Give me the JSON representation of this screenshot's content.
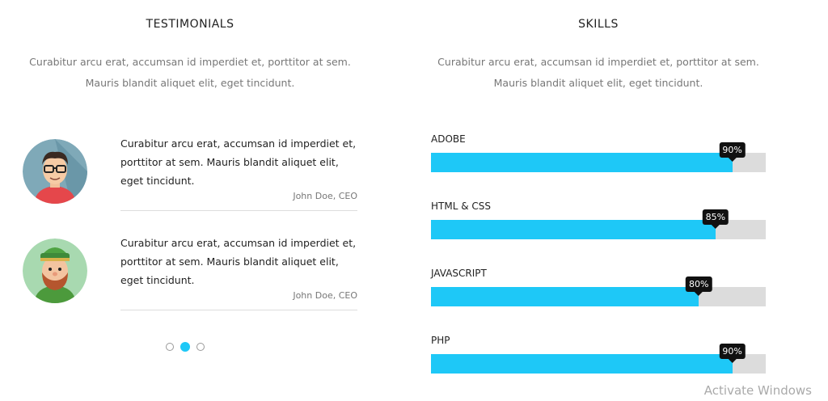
{
  "testimonials": {
    "title": "TESTIMONIALS",
    "subtitle_line1": "Curabitur arcu erat, accumsan id imperdiet et, porttitor at sem.",
    "subtitle_line2": "Mauris blandit aliquet elit, eget tincidunt.",
    "items": [
      {
        "text": "Curabitur arcu erat, accumsan id imperdiet et, porttitor at sem. Mauris blandit aliquet elit, eget tincidunt.",
        "author": "John Doe, CEO",
        "avatar": "man-with-glasses-avatar"
      },
      {
        "text": "Curabitur arcu erat, accumsan id imperdiet et, porttitor at sem. Mauris blandit aliquet elit, eget tincidunt.",
        "author": "John Doe, CEO",
        "avatar": "bearded-man-with-hat-avatar"
      }
    ],
    "pagination": {
      "pages": 3,
      "active": 2
    }
  },
  "skills": {
    "title": "SKILLS",
    "subtitle_line1": "Curabitur arcu erat, accumsan id imperdiet et, porttitor at sem.",
    "subtitle_line2": "Mauris blandit aliquet elit, eget tincidunt.",
    "items": [
      {
        "label": "ADOBE",
        "percent": 90,
        "percent_text": "90%"
      },
      {
        "label": "HTML & CSS",
        "percent": 85,
        "percent_text": "85%"
      },
      {
        "label": "JAVASCRIPT",
        "percent": 80,
        "percent_text": "80%"
      },
      {
        "label": "PHP",
        "percent": 90,
        "percent_text": "90%"
      }
    ]
  },
  "colors": {
    "accent": "#1ec8f7",
    "track": "#dcdcdc",
    "tooltip": "#111111"
  },
  "watermark": "Activate Windows"
}
